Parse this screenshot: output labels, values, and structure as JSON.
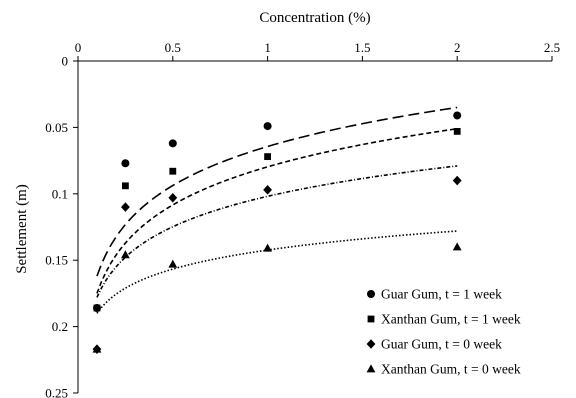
{
  "chart_data": {
    "type": "scatter",
    "x_axis": {
      "label": "Concentration (%)",
      "position": "top",
      "range": [
        0,
        2.5
      ],
      "ticks": [
        0,
        0.5,
        1,
        1.5,
        2,
        2.5
      ],
      "tick_labels": [
        "0",
        "0.5",
        "1",
        "1.5",
        "2",
        "2.5"
      ]
    },
    "y_axis": {
      "label": "Settlement (m)",
      "inverted": true,
      "range": [
        0,
        0.25
      ],
      "ticks": [
        0,
        0.05,
        0.1,
        0.15,
        0.2,
        0.25
      ],
      "tick_labels": [
        "0",
        "0.05",
        "0.1",
        "0.15",
        "0.2",
        "0.25"
      ]
    },
    "grid": false,
    "legend_position": "bottom-right",
    "series": [
      {
        "name": "Guar Gum, t = 1 week",
        "marker": "circle",
        "trendline": "long-dash",
        "x": [
          0.1,
          0.25,
          0.5,
          1,
          2
        ],
        "y": [
          0.186,
          0.077,
          0.062,
          0.049,
          0.041
        ]
      },
      {
        "name": "Xanthan Gum, t = 1 week",
        "marker": "square",
        "trendline": "short-dash",
        "x": [
          0.1,
          0.25,
          0.5,
          1,
          2
        ],
        "y": [
          0.186,
          0.094,
          0.083,
          0.072,
          0.053
        ]
      },
      {
        "name": "Guar Gum, t = 0 week",
        "marker": "diamond",
        "trendline": "dash-dot",
        "x": [
          0.1,
          0.25,
          0.5,
          1,
          2
        ],
        "y": [
          0.217,
          0.11,
          0.103,
          0.097,
          0.09
        ]
      },
      {
        "name": "Xanthan Gum, t = 0 week",
        "marker": "triangle",
        "trendline": "dotted",
        "x": [
          0.1,
          0.25,
          0.5,
          1,
          2
        ],
        "y": [
          0.217,
          0.146,
          0.153,
          0.141,
          0.14
        ]
      }
    ],
    "trendlines": [
      {
        "x_range": [
          0.1,
          2
        ],
        "y_start": 0.162,
        "y_end": 0.035
      },
      {
        "x_range": [
          0.1,
          2
        ],
        "y_start": 0.175,
        "y_end": 0.051
      },
      {
        "x_range": [
          0.1,
          2
        ],
        "y_start": 0.178,
        "y_end": 0.079
      },
      {
        "x_range": [
          0.1,
          2
        ],
        "y_start": 0.19,
        "y_end": 0.128
      }
    ]
  }
}
